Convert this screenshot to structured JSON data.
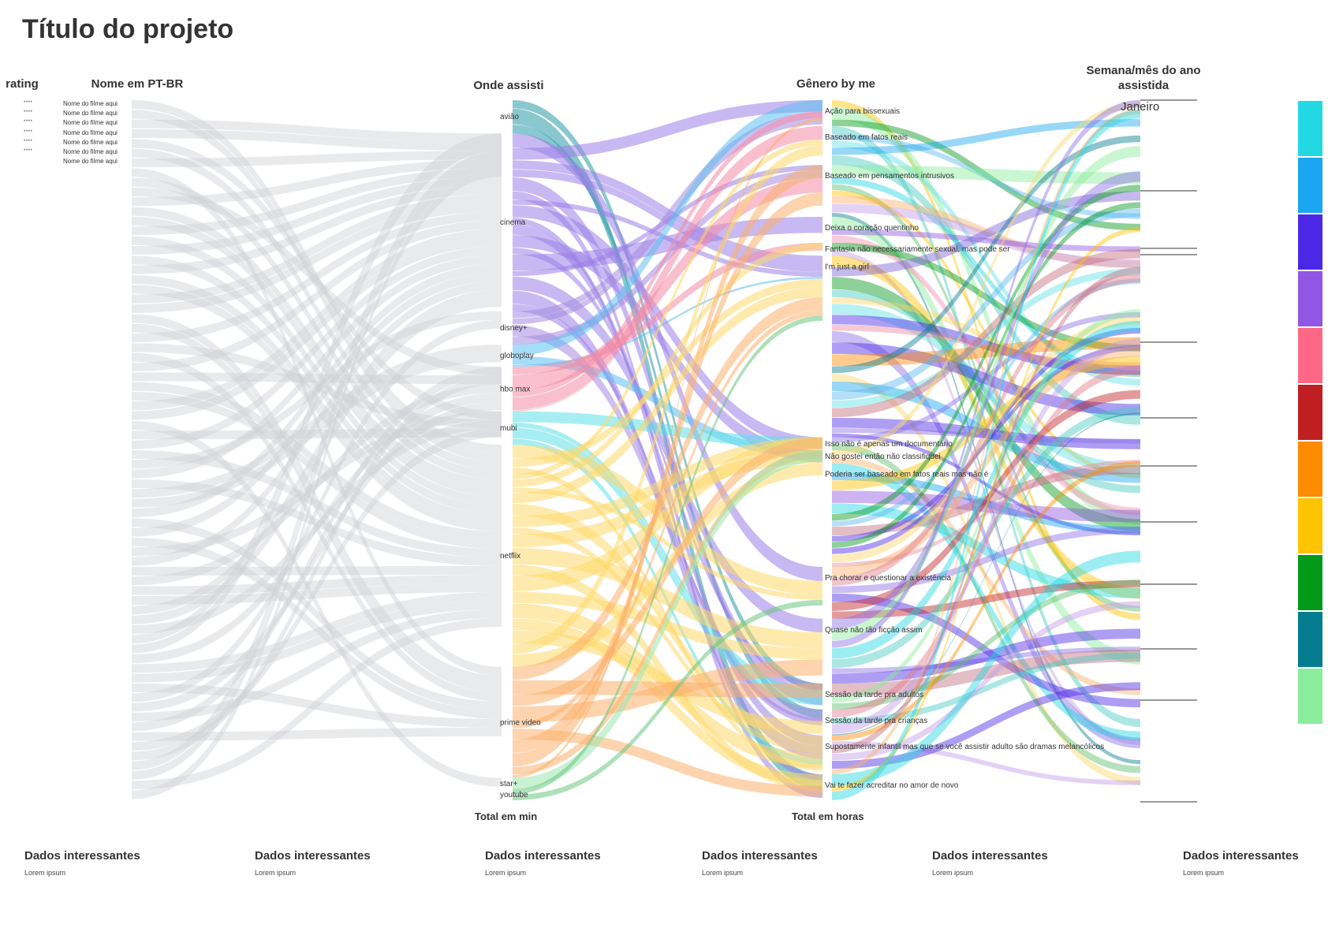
{
  "title": "Título do projeto",
  "columns": {
    "rating": "rating",
    "nome": "Nome em PT-BR",
    "onde": "Onde assisti",
    "genero": "Gênero by me",
    "semana": "Semana/mês do ano assistida"
  },
  "axis_labels": {
    "onde_total": "Total em min",
    "genero_total": "Total em horas"
  },
  "month_label": "Janeiro",
  "films": [
    {
      "rating": "****",
      "name": "Nome do filme aqui"
    },
    {
      "rating": "****",
      "name": "Nome do filme aqui"
    },
    {
      "rating": "****",
      "name": "Nome do filme aqui"
    },
    {
      "rating": "****",
      "name": "Nome do filme aqui"
    },
    {
      "rating": "****",
      "name": "Nome do filme aqui"
    },
    {
      "rating": "****",
      "name": "Nome do filme aqui"
    },
    {
      "rating": "",
      "name": "Nome do filme aqui"
    }
  ],
  "platforms": [
    {
      "name": "avião",
      "color": "#2a9aa8",
      "size": 3
    },
    {
      "name": "cinema",
      "color": "#9b7fe8",
      "size": 16
    },
    {
      "name": "disney+",
      "color": "#a58be0",
      "size": 3
    },
    {
      "name": "globoplay",
      "color": "#5dc0f0",
      "size": 2
    },
    {
      "name": "hbo max",
      "color": "#f48aa6",
      "size": 4
    },
    {
      "name": "mubi",
      "color": "#5fe0ea",
      "size": 3
    },
    {
      "name": "netflix",
      "color": "#fdd86a",
      "size": 20
    },
    {
      "name": "prime video",
      "color": "#fbb06b",
      "size": 10
    },
    {
      "name": "star+",
      "color": "#9de6ae",
      "size": 1
    },
    {
      "name": "youtube",
      "color": "#6cc77f",
      "size": 1
    }
  ],
  "genres": [
    {
      "name": "Ação para bissexuais",
      "color": "#8a6fe6",
      "size": 2
    },
    {
      "name": "Baseado em fatos reais",
      "color": "#5ab7f0",
      "size": 3
    },
    {
      "name": "Baseado em pensamentos intrusivos",
      "color": "#5fdfe6",
      "size": 4
    },
    {
      "name": "Deixa o coração quentinho",
      "color": "#48c9c0",
      "size": 2
    },
    {
      "name": "Fantasia não necessariamente sexual, mas pode ser",
      "color": "#c36a7a",
      "size": 1
    },
    {
      "name": "I'm just a girl",
      "color": "#c29ce8",
      "size": 14
    },
    {
      "name": "Isso não é apenas um documentário",
      "color": "#a8e6b8",
      "size": 1
    },
    {
      "name": "Não gostei então não classifiquei",
      "color": "#7c63d8",
      "size": 1
    },
    {
      "name": "Poderia ser baseado em fatos reais mas não é",
      "color": "#fbb06b",
      "size": 8
    },
    {
      "name": "Pra chorar e questionar a existência",
      "color": "#e07a8a",
      "size": 4
    },
    {
      "name": "Quase não tão ficção assim",
      "color": "#fdd86a",
      "size": 5
    },
    {
      "name": "Sessão da tarde pra adultos",
      "color": "#5bbf6a",
      "size": 2
    },
    {
      "name": "Sessão da tarde pra crianças",
      "color": "#e88aa0",
      "size": 2
    },
    {
      "name": "Supostamente infantil mas que se você assistir adulto são dramas melancólicos",
      "color": "#c06e80",
      "size": 3
    },
    {
      "name": "Vai te fazer acreditar no amor de novo",
      "color": "#f58fb0",
      "size": 2
    }
  ],
  "legend_colors": [
    "#22d8e2",
    "#1aa6f0",
    "#4a28e6",
    "#9156e3",
    "#fe6887",
    "#c01f22",
    "#fe8b00",
    "#fec400",
    "#039a1a",
    "#057d91",
    "#8aec9c"
  ],
  "footer": [
    {
      "heading": "Dados interessantes",
      "body": "Lorem ipsum"
    },
    {
      "heading": "Dados interessantes",
      "body": "Lorem ipsum"
    },
    {
      "heading": "Dados interessantes",
      "body": "Lorem ipsum"
    },
    {
      "heading": "Dados interessantes",
      "body": "Lorem ipsum"
    },
    {
      "heading": "Dados interessantes",
      "body": "Lorem ipsum"
    },
    {
      "heading": "Dados interessantes",
      "body": "Lorem ipsum"
    }
  ]
}
